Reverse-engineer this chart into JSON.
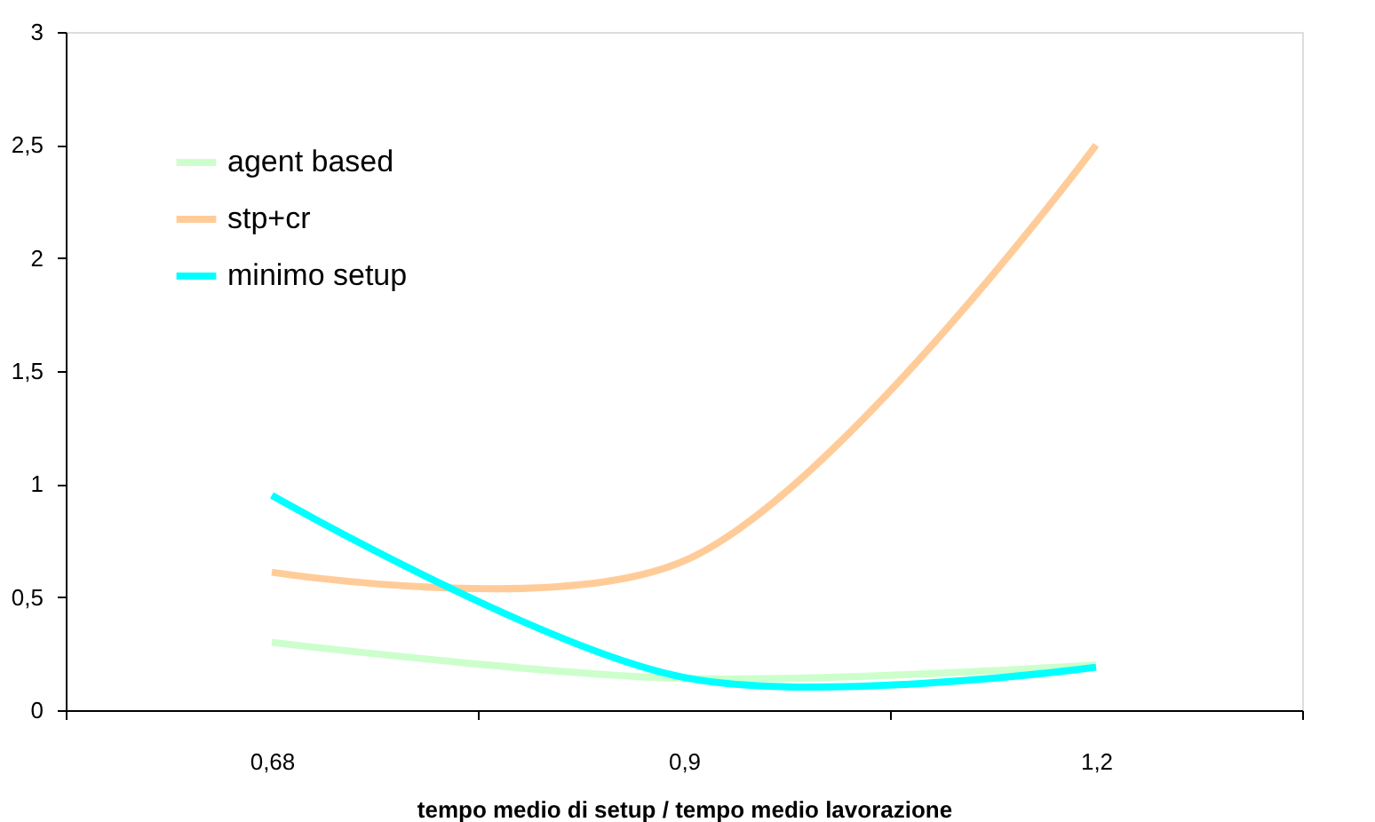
{
  "chart_data": {
    "type": "line",
    "xlabel": "tempo medio di setup / tempo medio lavorazione",
    "categories": [
      "0,68",
      "0,9",
      "1,2"
    ],
    "series": [
      {
        "name": "agent based",
        "color": "#ccffcc",
        "values": [
          0.3,
          0.14,
          0.2
        ]
      },
      {
        "name": "stp+cr",
        "color": "#ffcc99",
        "values": [
          0.61,
          0.66,
          2.5
        ]
      },
      {
        "name": "minimo setup",
        "color": "#00ffff",
        "values": [
          0.95,
          0.145,
          0.19
        ]
      }
    ],
    "ylim": [
      0,
      3
    ],
    "yticks": [
      0,
      {
        "value": 0.5,
        "label": "0,5"
      },
      1,
      {
        "value": 1.5,
        "label": "1,5"
      },
      2,
      {
        "value": 2.5,
        "label": "2,5"
      },
      3
    ],
    "grid": false,
    "legend": "top left",
    "marker": "none",
    "line_style": "solid"
  }
}
